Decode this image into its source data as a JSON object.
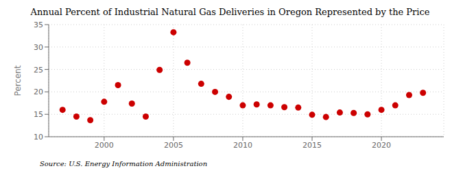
{
  "chart_data": {
    "type": "scatter",
    "title": "Annual Percent of Industrial Natural Gas Deliveries in Oregon Represented by the Price",
    "ylabel": "Percent",
    "annotation": "Source: U.S. Energy Information Administration",
    "x": [
      1997,
      1998,
      1999,
      2000,
      2001,
      2002,
      2003,
      2004,
      2005,
      2006,
      2007,
      2008,
      2009,
      2010,
      2011,
      2012,
      2013,
      2014,
      2015,
      2016,
      2017,
      2018,
      2019,
      2020,
      2021,
      2022,
      2023
    ],
    "values": [
      16.0,
      14.5,
      13.7,
      17.8,
      21.5,
      17.4,
      14.5,
      24.9,
      33.3,
      26.5,
      21.8,
      20.0,
      18.9,
      17.0,
      17.2,
      17.0,
      16.6,
      16.5,
      14.9,
      14.4,
      15.4,
      15.3,
      15.0,
      16.0,
      17.0,
      19.3,
      19.8
    ],
    "color": "#cc0000",
    "xlim": [
      1996.0,
      2024.5
    ],
    "ylim": [
      10,
      35
    ],
    "xticks": [
      2000,
      2005,
      2010,
      2015,
      2020
    ],
    "yticks": [
      10,
      15,
      20,
      25,
      30,
      35
    ],
    "grid": true
  }
}
